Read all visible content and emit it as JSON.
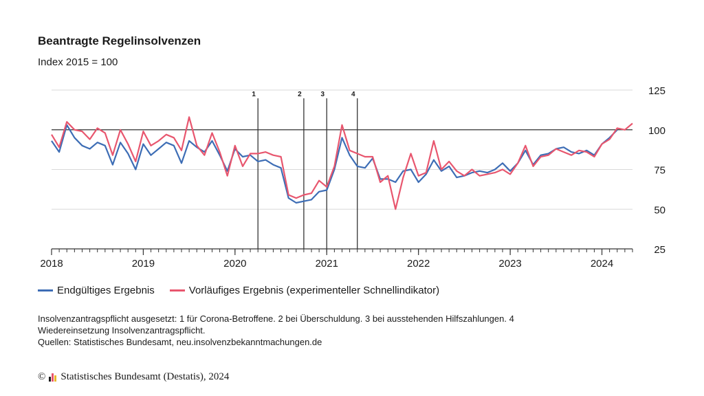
{
  "chart_data": {
    "type": "line",
    "title": "Beantragte Regelinsolvenzen",
    "subtitle": "Index 2015 = 100",
    "x_start": "2018-01",
    "x_end": "2024-05",
    "x_ticks": [
      "2018",
      "2019",
      "2020",
      "2021",
      "2022",
      "2023",
      "2024"
    ],
    "ylim": [
      25,
      125
    ],
    "y_ticks": [
      125,
      100,
      75,
      50,
      25
    ],
    "reference_line": 100,
    "vlines": [
      {
        "label": "1",
        "date": "2020-04"
      },
      {
        "label": "2",
        "date": "2020-10"
      },
      {
        "label": "3",
        "date": "2021-01"
      },
      {
        "label": "4",
        "date": "2021-05"
      }
    ],
    "series": [
      {
        "name": "Endgültiges Ergebnis",
        "color": "#3d6db5",
        "start": "2018-01",
        "values": [
          93,
          86,
          103,
          95,
          90,
          88,
          92,
          90,
          78,
          92,
          85,
          75,
          91,
          84,
          88,
          92,
          90,
          79,
          93,
          89,
          86,
          93,
          84,
          74,
          88,
          83,
          84,
          80,
          81,
          78,
          76,
          57,
          54,
          55,
          56,
          61,
          62,
          75,
          95,
          84,
          77,
          76,
          82,
          69,
          69,
          67,
          74,
          75,
          67,
          72,
          81,
          74,
          77,
          70,
          71,
          73,
          74,
          73,
          75,
          79,
          74,
          79,
          87,
          78,
          84,
          85,
          88,
          89,
          86,
          85,
          87,
          84,
          91,
          95,
          100
        ]
      },
      {
        "name": "Vorläufiges Ergebnis (experimenteller Schnellindikator)",
        "color": "#e8566e",
        "start": "2018-01",
        "values": [
          97,
          89,
          105,
          100,
          99,
          94,
          101,
          98,
          84,
          100,
          91,
          80,
          99,
          90,
          93,
          97,
          95,
          87,
          108,
          90,
          84,
          98,
          86,
          71,
          90,
          77,
          85,
          85,
          86,
          84,
          83,
          59,
          57,
          59,
          60,
          68,
          64,
          77,
          103,
          87,
          85,
          83,
          83,
          67,
          71,
          50,
          70,
          85,
          71,
          73,
          93,
          75,
          80,
          74,
          71,
          75,
          71,
          72,
          73,
          75,
          72,
          79,
          90,
          77,
          83,
          84,
          88,
          86,
          84,
          87,
          86,
          83,
          91,
          94,
          101,
          100,
          104
        ]
      }
    ]
  },
  "notes": {
    "line1": "Insolvenzantragspflicht ausgesetzt: 1 für Corona-Betroffene. 2 bei Überschuldung. 3 bei ausstehenden Hilfszahlungen. 4",
    "line2": "Wiedereinsetzung Insolvenzantragspflicht.",
    "line3": "Quellen: Statistisches Bundesamt, neu.insolvenzbekanntmachungen.de"
  },
  "footer": {
    "copyright": "©",
    "text": "Statistisches Bundesamt (Destatis), 2024",
    "logo_colors": [
      "#1a1a1a",
      "#e8566e",
      "#e8b82a"
    ]
  }
}
